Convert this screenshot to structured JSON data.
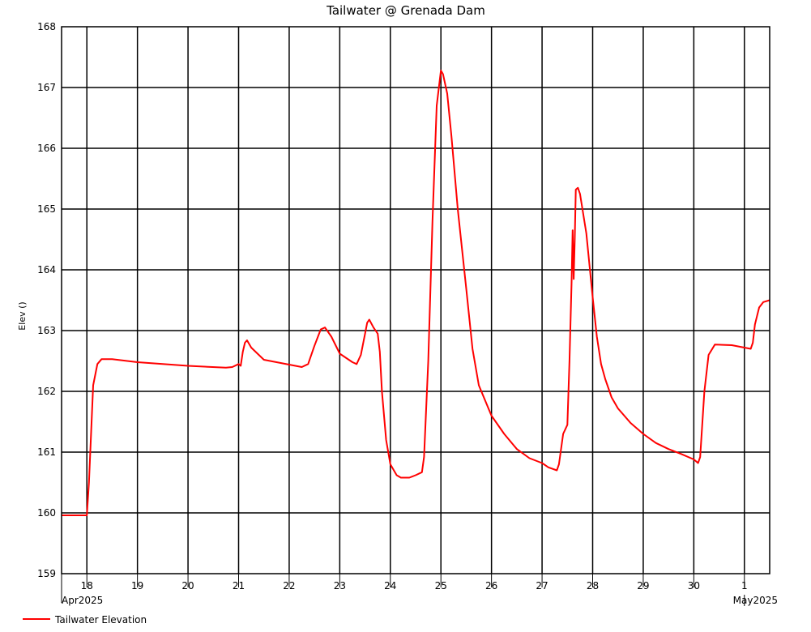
{
  "chart_data": {
    "type": "line",
    "title": "Tailwater @ Grenada Dam",
    "xlabel": "",
    "ylabel": "Elev ()",
    "x_range": [
      "2025-04-17T12:00",
      "2025-05-01T12:00"
    ],
    "ylim": [
      159,
      168
    ],
    "y_ticks": [
      159,
      160,
      161,
      162,
      163,
      164,
      165,
      166,
      167,
      168
    ],
    "x_day_ticks": [
      "18",
      "19",
      "20",
      "21",
      "22",
      "23",
      "24",
      "25",
      "26",
      "27",
      "28",
      "29",
      "30",
      "1"
    ],
    "month_labels": [
      "Apr2025",
      "May2025"
    ],
    "grid": true,
    "legend_position": "bottom-left",
    "series": [
      {
        "name": "Tailwater Elevation",
        "color": "#ff0000",
        "points": [
          [
            "2025-04-17T12:00",
            159.96
          ],
          [
            "2025-04-18T00:00",
            159.96
          ],
          [
            "2025-04-18T01:00",
            160.5
          ],
          [
            "2025-04-18T02:00",
            161.3
          ],
          [
            "2025-04-18T03:00",
            162.1
          ],
          [
            "2025-04-18T05:00",
            162.45
          ],
          [
            "2025-04-18T07:00",
            162.53
          ],
          [
            "2025-04-18T12:00",
            162.53
          ],
          [
            "2025-04-19T00:00",
            162.48
          ],
          [
            "2025-04-20T00:00",
            162.42
          ],
          [
            "2025-04-20T18:00",
            162.39
          ],
          [
            "2025-04-20T21:00",
            162.4
          ],
          [
            "2025-04-21T00:00",
            162.45
          ],
          [
            "2025-04-21T01:00",
            162.42
          ],
          [
            "2025-04-21T02:00",
            162.65
          ],
          [
            "2025-04-21T03:00",
            162.8
          ],
          [
            "2025-04-21T04:00",
            162.84
          ],
          [
            "2025-04-21T06:00",
            162.72
          ],
          [
            "2025-04-21T09:00",
            162.62
          ],
          [
            "2025-04-21T12:00",
            162.52
          ],
          [
            "2025-04-22T00:00",
            162.44
          ],
          [
            "2025-04-22T06:00",
            162.4
          ],
          [
            "2025-04-22T09:00",
            162.45
          ],
          [
            "2025-04-22T12:00",
            162.75
          ],
          [
            "2025-04-22T15:00",
            163.02
          ],
          [
            "2025-04-22T17:00",
            163.05
          ],
          [
            "2025-04-22T20:00",
            162.9
          ],
          [
            "2025-04-23T00:00",
            162.62
          ],
          [
            "2025-04-23T06:00",
            162.48
          ],
          [
            "2025-04-23T08:00",
            162.45
          ],
          [
            "2025-04-23T10:00",
            162.6
          ],
          [
            "2025-04-23T12:00",
            162.95
          ],
          [
            "2025-04-23T13:00",
            163.13
          ],
          [
            "2025-04-23T14:00",
            163.18
          ],
          [
            "2025-04-23T16:00",
            163.05
          ],
          [
            "2025-04-23T18:00",
            162.95
          ],
          [
            "2025-04-23T19:00",
            162.65
          ],
          [
            "2025-04-23T20:00",
            162.0
          ],
          [
            "2025-04-23T22:00",
            161.2
          ],
          [
            "2025-04-24T00:00",
            160.8
          ],
          [
            "2025-04-24T03:00",
            160.62
          ],
          [
            "2025-04-24T05:00",
            160.58
          ],
          [
            "2025-04-24T09:00",
            160.58
          ],
          [
            "2025-04-24T12:00",
            160.62
          ],
          [
            "2025-04-24T15:00",
            160.67
          ],
          [
            "2025-04-24T16:00",
            160.92
          ],
          [
            "2025-04-24T18:00",
            162.5
          ],
          [
            "2025-04-24T20:00",
            164.8
          ],
          [
            "2025-04-24T22:00",
            166.7
          ],
          [
            "2025-04-25T00:00",
            167.28
          ],
          [
            "2025-04-25T01:00",
            167.22
          ],
          [
            "2025-04-25T03:00",
            166.9
          ],
          [
            "2025-04-25T05:00",
            166.2
          ],
          [
            "2025-04-25T08:00",
            165.0
          ],
          [
            "2025-04-25T12:00",
            163.7
          ],
          [
            "2025-04-25T15:00",
            162.7
          ],
          [
            "2025-04-25T18:00",
            162.1
          ],
          [
            "2025-04-26T00:00",
            161.6
          ],
          [
            "2025-04-26T06:00",
            161.3
          ],
          [
            "2025-04-26T12:00",
            161.05
          ],
          [
            "2025-04-26T18:00",
            160.9
          ],
          [
            "2025-04-27T00:00",
            160.82
          ],
          [
            "2025-04-27T03:00",
            160.75
          ],
          [
            "2025-04-27T07:00",
            160.7
          ],
          [
            "2025-04-27T08:00",
            160.8
          ],
          [
            "2025-04-27T10:00",
            161.3
          ],
          [
            "2025-04-27T12:00",
            161.45
          ],
          [
            "2025-04-27T13:00",
            162.5
          ],
          [
            "2025-04-27T14:00",
            163.8
          ],
          [
            "2025-04-27T14:30",
            164.65
          ],
          [
            "2025-04-27T15:00",
            163.85
          ],
          [
            "2025-04-27T15:30",
            164.5
          ],
          [
            "2025-04-27T16:00",
            165.32
          ],
          [
            "2025-04-27T17:00",
            165.35
          ],
          [
            "2025-04-27T18:00",
            165.25
          ],
          [
            "2025-04-27T21:00",
            164.6
          ],
          [
            "2025-04-28T00:00",
            163.55
          ],
          [
            "2025-04-28T02:00",
            162.9
          ],
          [
            "2025-04-28T04:00",
            162.45
          ],
          [
            "2025-04-28T06:00",
            162.2
          ],
          [
            "2025-04-28T09:00",
            161.9
          ],
          [
            "2025-04-28T12:00",
            161.72
          ],
          [
            "2025-04-28T18:00",
            161.48
          ],
          [
            "2025-04-29T00:00",
            161.3
          ],
          [
            "2025-04-29T06:00",
            161.15
          ],
          [
            "2025-04-29T12:00",
            161.05
          ],
          [
            "2025-04-29T18:00",
            160.97
          ],
          [
            "2025-04-30T00:00",
            160.88
          ],
          [
            "2025-04-30T02:00",
            160.82
          ],
          [
            "2025-04-30T03:00",
            160.92
          ],
          [
            "2025-04-30T05:00",
            162.0
          ],
          [
            "2025-04-30T07:00",
            162.6
          ],
          [
            "2025-04-30T10:00",
            162.77
          ],
          [
            "2025-04-30T18:00",
            162.76
          ],
          [
            "2025-05-01T00:00",
            162.72
          ],
          [
            "2025-05-01T03:00",
            162.7
          ],
          [
            "2025-05-01T04:00",
            162.8
          ],
          [
            "2025-05-01T05:00",
            163.1
          ],
          [
            "2025-05-01T07:00",
            163.38
          ],
          [
            "2025-05-01T09:00",
            163.47
          ],
          [
            "2025-05-01T12:00",
            163.5
          ]
        ]
      }
    ]
  }
}
